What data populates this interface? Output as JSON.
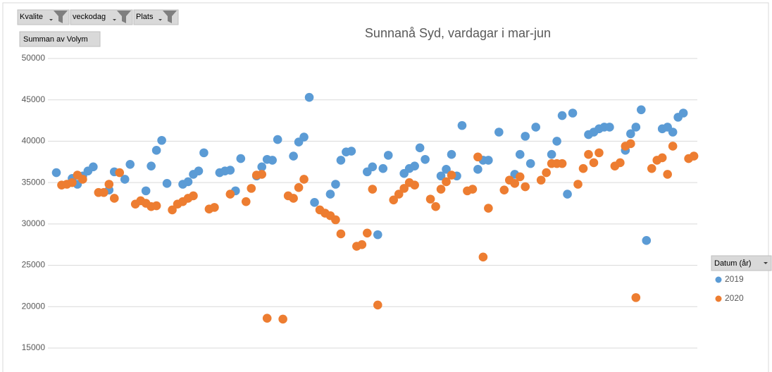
{
  "chart_data": {
    "type": "scatter",
    "title": "Sunnanå Syd, vardagar i mar-jun",
    "filters": [
      "Kvalite",
      "veckodag",
      "Plats"
    ],
    "value_field": "Summan av Volym",
    "legend_title": "Datum (år)",
    "legend_position": "right",
    "grid": true,
    "ylim": [
      15000,
      50000
    ],
    "yticks": [
      15000,
      20000,
      25000,
      30000,
      35000,
      40000,
      45000,
      50000
    ],
    "categories": [
      null,
      null,
      null,
      null,
      null,
      null,
      null,
      null,
      null,
      null,
      null,
      null,
      null,
      null,
      null,
      null,
      null,
      null,
      null,
      null,
      null,
      null,
      null,
      null,
      null,
      null,
      null,
      null,
      null,
      null,
      null,
      null,
      null,
      null,
      null,
      null,
      null,
      null,
      null,
      null,
      null,
      null,
      null,
      null,
      null,
      null,
      null,
      null,
      null,
      null,
      null,
      null,
      null,
      null,
      null,
      null,
      null,
      null,
      null,
      null,
      null,
      null,
      null,
      null,
      null,
      null,
      null,
      null,
      null,
      null,
      null,
      null,
      null,
      null,
      null,
      null,
      null,
      null,
      null,
      null,
      null,
      null,
      null,
      null,
      null,
      null,
      null,
      null,
      null,
      null,
      null,
      null,
      null,
      null,
      null,
      null,
      null,
      null,
      null,
      null,
      null,
      null,
      null,
      null,
      null,
      null,
      null,
      null,
      null,
      null,
      null,
      null,
      null,
      null,
      null,
      null,
      null,
      null,
      null,
      null,
      null,
      null
    ],
    "series": [
      {
        "name": "2019",
        "color": "#5b9bd5",
        "values": [
          36200,
          null,
          null,
          35500,
          34800,
          35800,
          36400,
          36900,
          null,
          null,
          34100,
          36300,
          null,
          35400,
          37200,
          null,
          null,
          34000,
          37000,
          38900,
          40100,
          34900,
          null,
          null,
          34800,
          35100,
          36000,
          36400,
          38600,
          null,
          null,
          36200,
          36400,
          36500,
          34000,
          37900,
          null,
          null,
          35800,
          36900,
          37800,
          37700,
          40200,
          null,
          null,
          38200,
          39900,
          40500,
          45300,
          32600,
          null,
          null,
          33600,
          34800,
          37700,
          38700,
          38800,
          null,
          null,
          36300,
          36900,
          28700,
          36700,
          38300,
          null,
          null,
          36100,
          36700,
          37000,
          39200,
          37800,
          null,
          null,
          35800,
          36600,
          38400,
          35800,
          41900,
          null,
          null,
          36600,
          37700,
          37700,
          null,
          41100,
          null,
          null,
          36000,
          38400,
          40600,
          37300,
          41700,
          null,
          null,
          38400,
          40000,
          43100,
          33600,
          43400,
          null,
          null,
          40800,
          41100,
          41500,
          41700,
          41700,
          null,
          null,
          38900,
          40900,
          41700,
          43800,
          28000,
          null,
          null,
          41500,
          41700,
          41100,
          42900,
          43400,
          null,
          null
        ]
      },
      {
        "name": "2020",
        "color": "#ed7d31",
        "values": [
          null,
          34700,
          34800,
          35000,
          35900,
          35400,
          null,
          null,
          33800,
          33800,
          34800,
          33100,
          36200,
          null,
          null,
          32400,
          32800,
          32500,
          32100,
          32200,
          null,
          null,
          31700,
          32400,
          32700,
          33100,
          33400,
          null,
          null,
          31800,
          32000,
          null,
          null,
          33600,
          null,
          null,
          32700,
          34300,
          35900,
          36000,
          18600,
          null,
          null,
          18500,
          33400,
          33100,
          34400,
          35400,
          null,
          null,
          31700,
          31300,
          31000,
          30500,
          28800,
          null,
          null,
          27300,
          27500,
          28900,
          34200,
          20200,
          null,
          null,
          32900,
          33600,
          34300,
          35000,
          34700,
          null,
          null,
          33000,
          32100,
          34200,
          35100,
          35900,
          null,
          null,
          34000,
          34200,
          38100,
          26000,
          31900,
          null,
          null,
          34100,
          35300,
          34900,
          35700,
          34500,
          null,
          null,
          35300,
          36200,
          37300,
          37300,
          37300,
          null,
          null,
          34800,
          36700,
          38400,
          37400,
          38600,
          null,
          null,
          37000,
          37400,
          39400,
          39700,
          21100,
          null,
          null,
          36700,
          37700,
          38000,
          36000,
          39400,
          null,
          null,
          37900,
          38200
        ]
      }
    ]
  }
}
